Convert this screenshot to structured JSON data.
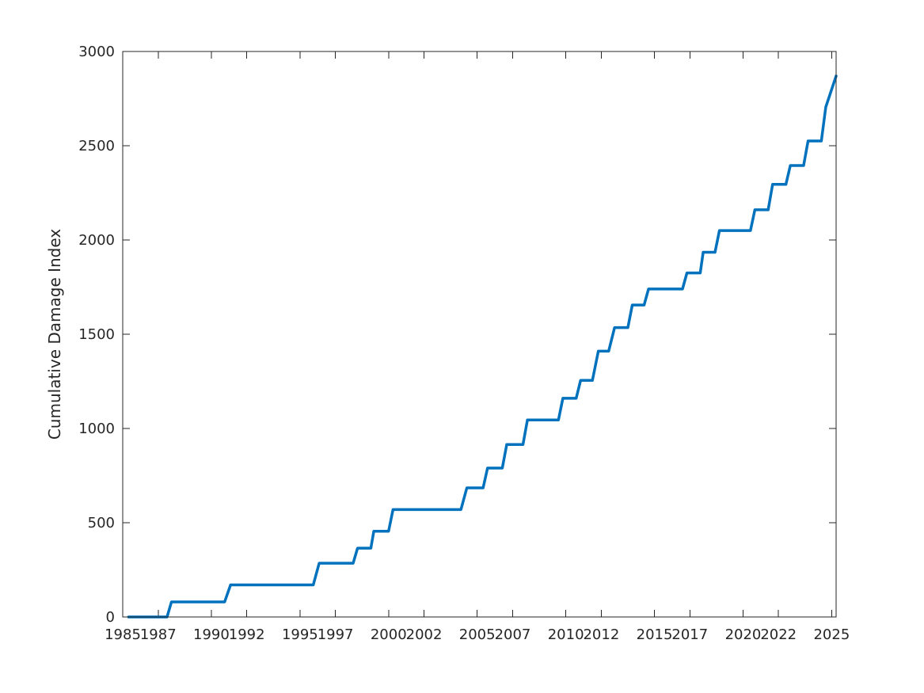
{
  "chart_data": {
    "type": "line",
    "title": "",
    "xlabel": "",
    "ylabel": "Cumulative Damage Index",
    "xlim": [
      "1985-01",
      "2025-04"
    ],
    "ylim": [
      0,
      3000
    ],
    "x_ticks": [
      "1985",
      "1987",
      "1990",
      "1992",
      "1995",
      "1997",
      "2000",
      "2002",
      "2005",
      "2007",
      "2010",
      "2012",
      "2015",
      "2017",
      "2020",
      "2022",
      "2025"
    ],
    "y_ticks": [
      0,
      500,
      1000,
      1500,
      2000,
      2500,
      3000
    ],
    "grid": false,
    "color": "#0072BD",
    "series": [
      {
        "x": [
          "1985-05",
          "1987-07",
          "1987-10",
          "1990-10",
          "1991-02",
          "1995-10",
          "1996-02",
          "1998-01",
          "1998-04",
          "1999-01",
          "1999-03",
          "2000-01",
          "2000-04",
          "2004-02",
          "2004-06",
          "2005-05",
          "2005-08",
          "2006-06",
          "2006-09",
          "2007-08",
          "2007-11",
          "2009-08",
          "2009-11",
          "2010-08",
          "2010-11",
          "2011-07",
          "2011-11",
          "2012-06",
          "2012-10",
          "2013-07",
          "2013-10",
          "2014-06",
          "2014-09",
          "2016-08",
          "2016-11",
          "2017-08",
          "2017-10",
          "2018-06",
          "2018-09",
          "2020-06",
          "2020-09",
          "2021-06",
          "2021-09",
          "2022-06",
          "2022-09",
          "2023-06",
          "2023-09",
          "2024-06",
          "2024-09",
          "2025-04"
        ],
        "y": [
          0,
          0,
          80,
          80,
          170,
          170,
          285,
          285,
          365,
          365,
          455,
          455,
          570,
          570,
          685,
          685,
          790,
          790,
          915,
          915,
          1045,
          1045,
          1160,
          1160,
          1255,
          1255,
          1410,
          1410,
          1535,
          1535,
          1655,
          1655,
          1740,
          1740,
          1825,
          1825,
          1935,
          1935,
          2050,
          2050,
          2160,
          2160,
          2295,
          2295,
          2395,
          2395,
          2525,
          2525,
          2705,
          2870
        ]
      }
    ]
  }
}
